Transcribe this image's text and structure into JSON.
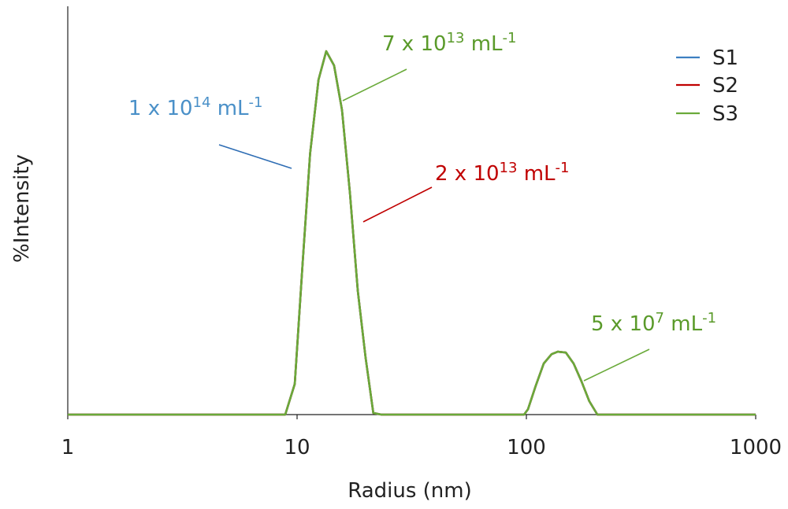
{
  "chart_data": {
    "type": "line",
    "x_label": "Radius (nm)",
    "y_label": "%Intensity",
    "log_x": true,
    "xlim": [
      1,
      1000
    ],
    "xticks": [
      1,
      10,
      100,
      1000
    ],
    "ylim": [
      0,
      100
    ],
    "x": [
      1,
      8.88,
      9.77,
      10.6,
      11.4,
      12.4,
      13.4,
      14.5,
      15.7,
      17.0,
      18.4,
      19.9,
      21.5,
      23.3,
      97.7,
      101.6,
      109.9,
      119,
      128.8,
      137,
      148.6,
      160.7,
      174,
      188,
      204,
      1000
    ],
    "series": [
      {
        "name": "S1",
        "color": "#3d7fc1",
        "values": [
          0,
          0,
          7.5,
          38,
          64,
          82,
          89,
          85.5,
          74.6,
          54.3,
          30.3,
          13.9,
          0.4,
          0,
          0,
          1.3,
          7.1,
          12.5,
          14.8,
          15.4,
          15.2,
          12.5,
          8.1,
          3.3,
          0,
          0
        ]
      },
      {
        "name": "S2",
        "color": "#c00000",
        "values": [
          0,
          0,
          7.5,
          38,
          64,
          82,
          89,
          85.5,
          74.6,
          54.3,
          30.3,
          13.9,
          0.4,
          0,
          0,
          1.3,
          7.1,
          12.5,
          14.8,
          15.4,
          15.2,
          12.5,
          8.1,
          3.3,
          0,
          0
        ]
      },
      {
        "name": "S3",
        "color": "#6aaa3a",
        "values": [
          0,
          0,
          7.5,
          38,
          64,
          82,
          89,
          85.5,
          74.6,
          54.3,
          30.3,
          13.9,
          0.4,
          0,
          0,
          1.3,
          7.1,
          12.5,
          14.8,
          15.4,
          15.2,
          12.5,
          8.1,
          3.3,
          0,
          0
        ]
      }
    ],
    "annotations": [
      {
        "text": "1 x 10",
        "exponent": "14",
        "unit": " mL",
        "unit_exponent": "-1",
        "color": "#4a90c8",
        "line_color": "#2e6db4"
      },
      {
        "text": "7 x 10",
        "exponent": "13",
        "unit": " mL",
        "unit_exponent": "-1",
        "color": "#5a9a2a",
        "line_color": "#6aaa3a"
      },
      {
        "text": "2 x 10",
        "exponent": "13",
        "unit": " mL",
        "unit_exponent": "-1",
        "color": "#c00000",
        "line_color": "#c00000"
      },
      {
        "text": "5 x 10",
        "exponent": "7",
        "unit": " mL",
        "unit_exponent": "-1",
        "color": "#5a9a2a",
        "line_color": "#6aaa3a"
      }
    ],
    "legend_position": "upper right"
  }
}
